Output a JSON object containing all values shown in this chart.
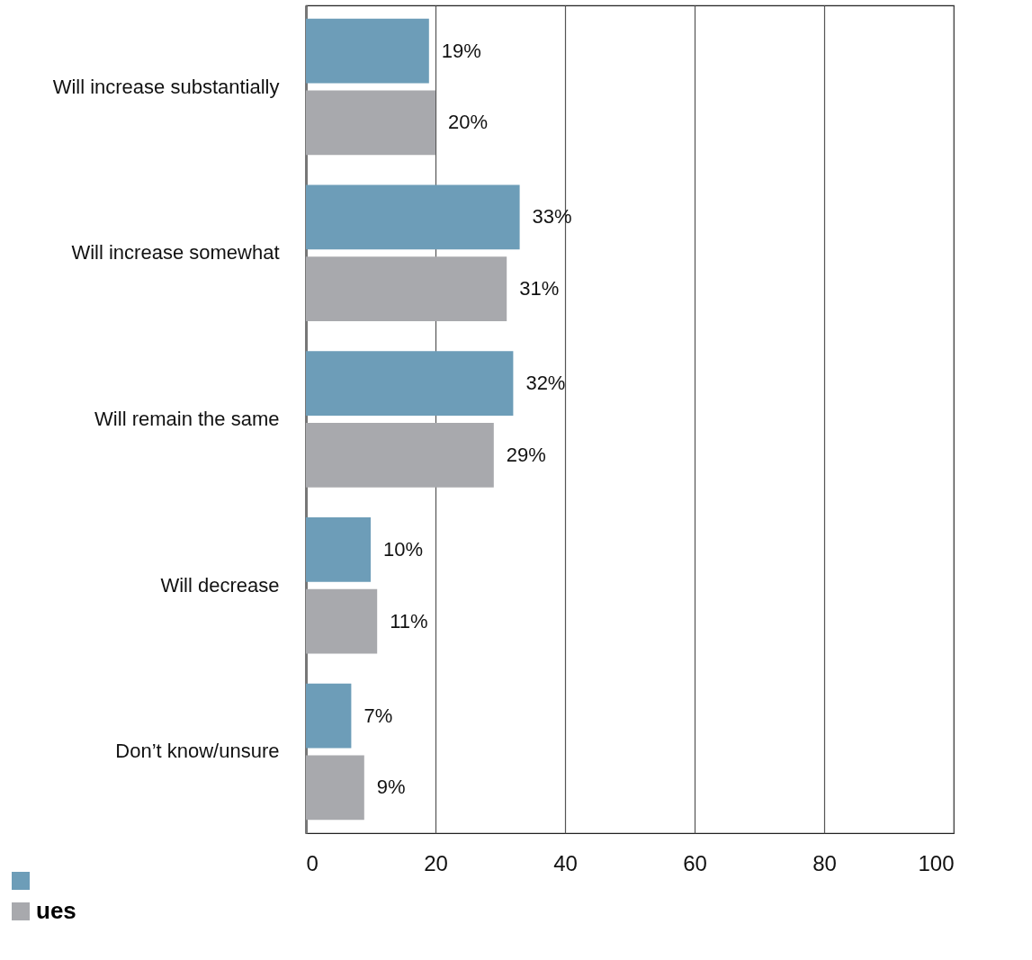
{
  "chart_data": {
    "type": "bar",
    "orientation": "horizontal",
    "categories": [
      "Will increase substantially",
      "Will increase somewhat",
      "Will remain the same",
      "Will decrease",
      "Don’t know/unsure"
    ],
    "series": [
      {
        "color": "#6d9db8",
        "values": [
          19,
          33,
          32,
          10,
          7
        ],
        "value_labels": [
          "19%",
          "33%",
          "32%",
          "10%",
          "7%"
        ]
      },
      {
        "name": "ues",
        "color": "#a8a9ad",
        "values": [
          20,
          31,
          29,
          11,
          9
        ],
        "value_labels": [
          "20%",
          "31%",
          "29%",
          "11%",
          "9%"
        ]
      }
    ],
    "xlim": [
      0,
      100
    ],
    "xticks": [
      0,
      20,
      40,
      60,
      80,
      100
    ],
    "grid": "x",
    "legend": "bottom left"
  }
}
